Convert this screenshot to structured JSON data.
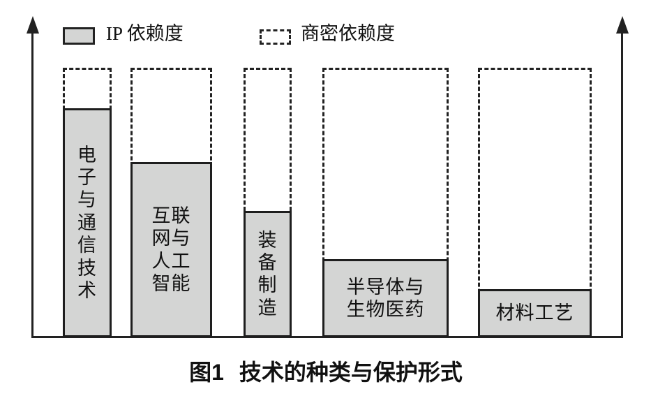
{
  "figure": {
    "caption_prefix": "图1",
    "caption_title": "技术的种类与保护形式"
  },
  "legend": {
    "ip_label": "IP 依赖度",
    "secret_label": "商密依赖度"
  },
  "chart_data": {
    "type": "bar",
    "title": "图1 技术的种类与保护形式",
    "categories": [
      "电子与通信技术",
      "互联网与人工智能",
      "装备制造",
      "半导体与生物医药",
      "材料工艺"
    ],
    "series": [
      {
        "name": "IP 依赖度",
        "style": "filled-gray-bar",
        "values": [
          85,
          65,
          47,
          29,
          18
        ]
      },
      {
        "name": "商密依赖度",
        "style": "dashed-outline-bar",
        "values": [
          100,
          100,
          100,
          100,
          100
        ]
      }
    ],
    "xlabel": "",
    "ylabel": "",
    "ylim": [
      0,
      100
    ],
    "axes_note": "unlabeled relative scale; two upward-arrow y-axes (left and right), no ticks, no gridlines; dashed outline boxes all reach the same top height; labels printed inside gray bars",
    "legend_position": "top, inside plot",
    "colors": {
      "bar_fill": "#d4d5d4",
      "line_and_text": "#222222",
      "background": "#ffffff"
    }
  },
  "bars": [
    {
      "label": "电子与通信技术",
      "label_display": "电\n子\n与\n通\n信\n技\n术",
      "ip_value": 85,
      "secret_value": 100
    },
    {
      "label": "互联网与人工智能",
      "label_display": "互联\n网与\n人工\n智能",
      "ip_value": 65,
      "secret_value": 100
    },
    {
      "label": "装备制造",
      "label_display": "装\n备\n制\n造",
      "ip_value": 47,
      "secret_value": 100
    },
    {
      "label": "半导体与生物医药",
      "label_display": "半导体与\n生物医药",
      "ip_value": 29,
      "secret_value": 100
    },
    {
      "label": "材料工艺",
      "label_display": "材料工艺",
      "ip_value": 18,
      "secret_value": 100
    }
  ]
}
